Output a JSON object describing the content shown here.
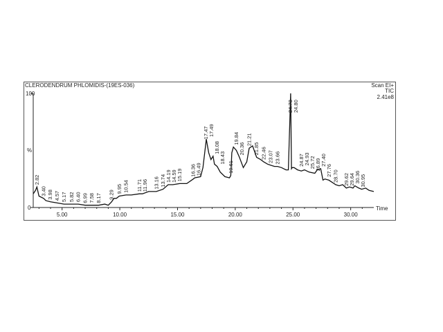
{
  "chart_data": {
    "type": "line",
    "title": "CLERODENDRUM PHLOMIDIS-(19ES-036)",
    "scan_mode": "Scan EI+",
    "trace_type": "TIC",
    "max_intensity": "2.41e8",
    "xlabel": "Time",
    "ylabel": "%",
    "xlim": [
      2.5,
      32.0
    ],
    "ylim": [
      0,
      100
    ],
    "x_ticks": [
      "5.00",
      "10.00",
      "15.00",
      "20.00",
      "25.00",
      "30.00"
    ],
    "y_ticks": [
      "0",
      "100"
    ],
    "grid": false,
    "series": [
      {
        "x": [
          2.5,
          2.7,
          2.82,
          3.0,
          3.4,
          3.6,
          4.0,
          4.57,
          5.17,
          5.82,
          6.4,
          6.99,
          7.58,
          8.17,
          8.7,
          9.0,
          9.29,
          9.5,
          9.7,
          9.95,
          10.54,
          11.0,
          11.71,
          11.96,
          12.5,
          13.16,
          13.74,
          14.19,
          14.59,
          15.19,
          15.8,
          16.36,
          16.49,
          17.0,
          17.2,
          17.47,
          17.49,
          17.7,
          17.9,
          18.08,
          18.2,
          18.43,
          18.7,
          19.1,
          19.5,
          19.61,
          19.7,
          19.84,
          20.1,
          20.36,
          20.7,
          21.0,
          21.21,
          21.5,
          21.85,
          22.2,
          22.46,
          22.8,
          23.07,
          23.4,
          23.66,
          24.0,
          24.4,
          24.6,
          24.78,
          24.8,
          24.87,
          24.93,
          25.1,
          25.4,
          25.72,
          26.0,
          26.4,
          26.89,
          27.1,
          27.4,
          27.6,
          27.76,
          28.1,
          28.4,
          28.7,
          29.0,
          29.3,
          29.62,
          29.9,
          30.2,
          30.36,
          30.7,
          30.95,
          31.3,
          31.6,
          32.0
        ],
        "y": [
          12,
          15,
          18,
          10,
          8,
          6,
          5,
          4,
          3,
          3,
          3,
          2,
          2,
          2,
          3,
          2,
          5,
          8,
          8,
          10,
          11,
          11,
          12,
          12,
          14,
          14,
          16,
          20,
          20,
          21,
          21,
          25,
          26,
          27,
          35,
          58,
          60,
          48,
          42,
          45,
          38,
          36,
          31,
          27,
          26,
          28,
          48,
          53,
          50,
          44,
          35,
          40,
          52,
          54,
          44,
          42,
          40,
          38,
          37,
          36,
          36,
          35,
          33,
          33,
          94,
          100,
          34,
          35,
          35,
          33,
          32,
          33,
          31,
          30,
          33,
          34,
          24,
          25,
          24,
          22,
          20,
          19,
          20,
          17,
          18,
          17,
          19,
          17,
          16,
          17,
          15,
          14
        ]
      }
    ],
    "peaks": [
      {
        "label": "2.82",
        "x": 2.82
      },
      {
        "label": "3.40",
        "x": 3.4
      },
      {
        "label": "3.98",
        "x": 3.98
      },
      {
        "label": "4.57",
        "x": 4.57
      },
      {
        "label": "5.17",
        "x": 5.17
      },
      {
        "label": "5.82",
        "x": 5.82
      },
      {
        "label": "6.40",
        "x": 6.4
      },
      {
        "label": "6.99",
        "x": 6.99
      },
      {
        "label": "7.58",
        "x": 7.58
      },
      {
        "label": "8.17",
        "x": 8.17
      },
      {
        "label": "9.29",
        "x": 9.29
      },
      {
        "label": "9.95",
        "x": 9.95
      },
      {
        "label": "10.54",
        "x": 10.54
      },
      {
        "label": "11.71",
        "x": 11.71
      },
      {
        "label": "11.96",
        "x": 11.96
      },
      {
        "label": "13.16",
        "x": 13.16
      },
      {
        "label": "13.74",
        "x": 13.74
      },
      {
        "label": "14.19",
        "x": 14.19
      },
      {
        "label": "14.59",
        "x": 14.59
      },
      {
        "label": "15.19",
        "x": 15.19
      },
      {
        "label": "16.36",
        "x": 16.36
      },
      {
        "label": "16.49",
        "x": 16.49
      },
      {
        "label": "17.47",
        "x": 17.47
      },
      {
        "label": "17.49",
        "x": 17.49
      },
      {
        "label": "18.08",
        "x": 18.08
      },
      {
        "label": "18.43",
        "x": 18.43
      },
      {
        "label": "19.61",
        "x": 19.61
      },
      {
        "label": "19.84",
        "x": 19.84
      },
      {
        "label": "20.36",
        "x": 20.36
      },
      {
        "label": "21.21",
        "x": 21.21
      },
      {
        "label": "21.85",
        "x": 21.85
      },
      {
        "label": "22.46",
        "x": 22.46
      },
      {
        "label": "23.07",
        "x": 23.07
      },
      {
        "label": "23.66",
        "x": 23.66
      },
      {
        "label": "24.78",
        "x": 24.78
      },
      {
        "label": "24.80",
        "x": 24.8
      },
      {
        "label": "24.87",
        "x": 24.87
      },
      {
        "label": "24.93",
        "x": 24.93
      },
      {
        "label": "25.72",
        "x": 25.72
      },
      {
        "label": "26.89",
        "x": 26.89
      },
      {
        "label": "27.40",
        "x": 27.4
      },
      {
        "label": "27.76",
        "x": 27.76
      },
      {
        "label": "28.70",
        "x": 28.7
      },
      {
        "label": "29.62",
        "x": 29.62
      },
      {
        "label": "29.64",
        "x": 29.64
      },
      {
        "label": "30.36",
        "x": 30.36
      },
      {
        "label": "30.95",
        "x": 30.95
      }
    ]
  }
}
